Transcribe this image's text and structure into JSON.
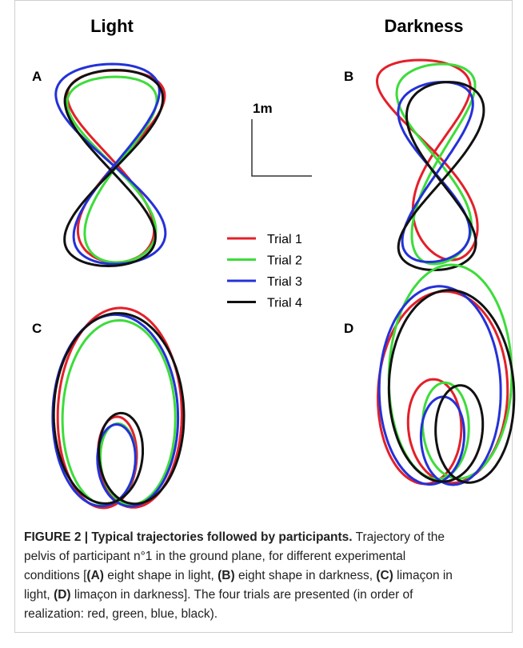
{
  "figure": {
    "columns": [
      "Light",
      "Darkness"
    ],
    "panels": [
      "A",
      "B",
      "C",
      "D"
    ],
    "scale_label": "1m",
    "legend": [
      {
        "name": "Trial 1",
        "color": "#e3202a"
      },
      {
        "name": "Trial 2",
        "color": "#3ddc3a"
      },
      {
        "name": "Trial 3",
        "color": "#2431d8"
      },
      {
        "name": "Trial 4",
        "color": "#111111"
      }
    ]
  },
  "caption": {
    "lines": [
      [
        {
          "text": "FIGURE 2 | Typical trajectories followed by participants.",
          "bold": true
        },
        {
          "text": " Trajectory of the",
          "bold": false
        }
      ],
      [
        {
          "text": "pelvis of participant n°1 in the ground plane, for different experimental",
          "bold": false
        }
      ],
      [
        {
          "text": "conditions [",
          "bold": false
        },
        {
          "text": "(A)",
          "bold": true
        },
        {
          "text": " eight shape in light, ",
          "bold": false
        },
        {
          "text": "(B)",
          "bold": true
        },
        {
          "text": " eight shape in darkness, ",
          "bold": false
        },
        {
          "text": "(C)",
          "bold": true
        },
        {
          "text": " limaçon in",
          "bold": false
        }
      ],
      [
        {
          "text": "light, ",
          "bold": false
        },
        {
          "text": "(D)",
          "bold": true
        },
        {
          "text": " limaçon in darkness]. The four trials are presented (in order of",
          "bold": false
        }
      ],
      [
        {
          "text": "realization: red, green, blue, black).",
          "bold": false
        }
      ]
    ]
  }
}
